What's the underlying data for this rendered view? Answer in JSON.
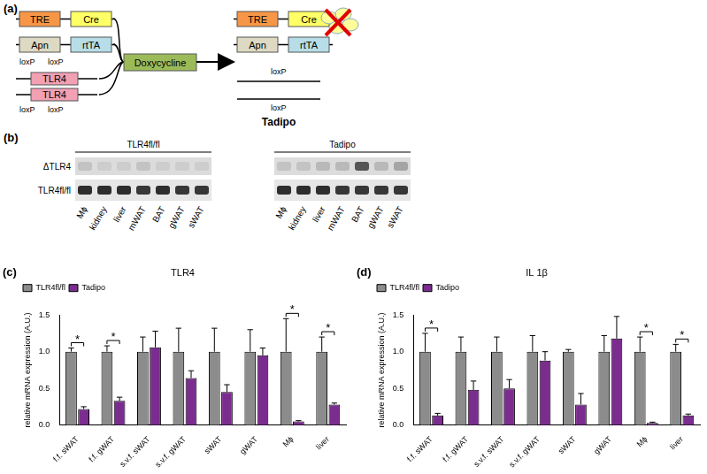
{
  "diagram": {
    "panel_label": "(a)",
    "before": {
      "transgenes": [
        {
          "promoter": "TRE",
          "gene": "Cre"
        },
        {
          "promoter": "Apn",
          "gene": "rtTA"
        }
      ],
      "loxp_labels_above": [
        "loxP",
        "loxP"
      ],
      "floxed_alleles": [
        "TLR4",
        "TLR4"
      ],
      "loxp_labels_below": [
        "loxP",
        "loxP"
      ]
    },
    "inducer": "Doxycycline",
    "after": {
      "transgenes": [
        {
          "promoter": "TRE",
          "gene": "Cre"
        },
        {
          "promoter": "Apn",
          "gene": "rtTA"
        }
      ],
      "loxp_labels": [
        "loxP",
        "loxP"
      ],
      "label": "Tadipo"
    }
  },
  "gel": {
    "panel_label": "(b)",
    "groups": [
      "TLR4fl/fl",
      "Tadipo"
    ],
    "lanes": [
      "Mϕ",
      "kidney",
      "liver",
      "mWAT",
      "BAT",
      "gWAT",
      "sWAT"
    ],
    "rows": [
      {
        "name": "ΔTLR4",
        "intensity": [
          [
            0.15,
            0.1,
            0.1,
            0.15,
            0.1,
            0.1,
            0.1
          ],
          [
            0.15,
            0.15,
            0.2,
            0.2,
            0.7,
            0.2,
            0.3
          ]
        ]
      },
      {
        "name": "TLR4fl/fl",
        "intensity": [
          [
            0.9,
            0.9,
            0.9,
            0.85,
            0.9,
            0.85,
            0.85
          ],
          [
            0.9,
            0.9,
            0.9,
            0.85,
            0.85,
            0.85,
            0.85
          ]
        ]
      }
    ]
  },
  "chart_data": [
    {
      "type": "bar",
      "panel_label": "(c)",
      "title": "TLR4",
      "y_label": "relative mRNA expression (A.U.)",
      "categories": [
        "f.f. sWAT",
        "f.f. gWAT",
        "s.v.f. sWAT",
        "s.v.f. gWAT",
        "sWAT",
        "gWAT",
        "Mϕ",
        "liver"
      ],
      "series": [
        {
          "name": "TLR4fl/fl",
          "color": "#8c8c8c",
          "values": [
            1,
            1,
            1,
            1,
            1,
            1,
            1,
            1
          ],
          "errors": [
            0.05,
            0.08,
            0.2,
            0.32,
            0.32,
            0.3,
            0.45,
            0.2
          ]
        },
        {
          "name": "Tadipo",
          "color": "#7b2d8f",
          "values": [
            0.22,
            0.33,
            1.06,
            0.64,
            0.45,
            0.95,
            0.05,
            0.28
          ],
          "errors": [
            0.03,
            0.05,
            0.22,
            0.1,
            0.1,
            0.1,
            0.01,
            0.02
          ]
        }
      ],
      "ylim": [
        0,
        1.5
      ],
      "yticks": [
        {
          "value": 0,
          "label": "0.0"
        },
        0.5,
        {
          "value": 1,
          "label": "1.0"
        },
        1.5
      ],
      "grid": false,
      "legend": "upper left",
      "significance": [
        {
          "category": "f.f. sWAT",
          "label": "*"
        },
        {
          "category": "f.f. gWAT",
          "label": "*"
        },
        {
          "category": "Mϕ",
          "label": "*"
        },
        {
          "category": "liver",
          "label": "*"
        }
      ]
    },
    {
      "type": "bar",
      "panel_label": "(d)",
      "title": "IL 1β",
      "y_label": "relative mRNA expression (A.U.)",
      "categories": [
        "f.f. sWAT",
        "f.f. gWAT",
        "s.v.f. sWAT",
        "s.v.f. gWAT",
        "sWAT",
        "gWAT",
        "Mϕ",
        "liver"
      ],
      "series": [
        {
          "name": "TLR4fl/fl",
          "color": "#8c8c8c",
          "values": [
            1,
            1,
            1,
            1,
            1,
            1,
            1,
            1
          ],
          "errors": [
            0.25,
            0.2,
            0.2,
            0.22,
            0.03,
            0.22,
            0.2,
            0.1
          ]
        },
        {
          "name": "Tadipo",
          "color": "#7b2d8f",
          "values": [
            0.13,
            0.48,
            0.5,
            0.88,
            0.28,
            1.18,
            0.03,
            0.13
          ],
          "errors": [
            0.03,
            0.12,
            0.12,
            0.12,
            0.15,
            0.3,
            0.01,
            0.02
          ]
        }
      ],
      "ylim": [
        0,
        1.5
      ],
      "yticks": [
        {
          "value": 0,
          "label": "0.0"
        },
        0.5,
        {
          "value": 1,
          "label": "1.0"
        },
        1.5
      ],
      "grid": false,
      "legend": "upper left",
      "significance": [
        {
          "category": "f.f. sWAT",
          "label": "*"
        },
        {
          "category": "Mϕ",
          "label": "*"
        },
        {
          "category": "liver",
          "label": "*"
        }
      ]
    }
  ]
}
